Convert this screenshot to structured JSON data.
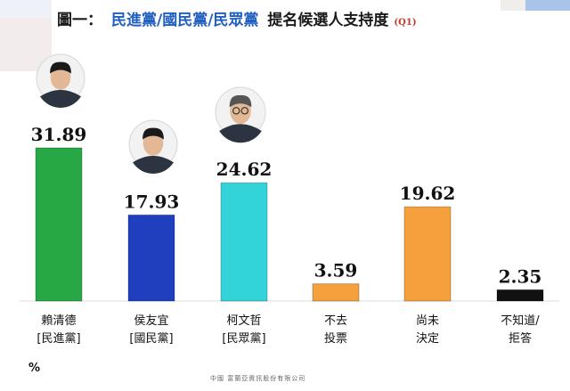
{
  "title": {
    "prefix": "圖一：",
    "parties": "民進黨/國民黨/民眾黨",
    "suffix": "提名候選人支持度",
    "question": "(Q1)"
  },
  "unit": "%",
  "source": "中國 富蘭亞資訊股份有限公司",
  "chart_data": {
    "type": "bar",
    "title": "圖一： 民進黨/國民黨/民眾黨 提名候選人支持度 (Q1)",
    "categories": [
      [
        "賴清德",
        "[民進黨]"
      ],
      [
        "侯友宜",
        "[國民黨]"
      ],
      [
        "柯文哲",
        "[民眾黨]"
      ],
      [
        "不去",
        "投票"
      ],
      [
        "尚未",
        "決定"
      ],
      [
        "不知道/",
        "拒答"
      ]
    ],
    "values": [
      31.89,
      17.93,
      24.62,
      3.59,
      19.62,
      2.35
    ],
    "value_labels": [
      "31.89",
      "17.93",
      "24.62",
      "3.59",
      "19.62",
      "2.35"
    ],
    "colors": [
      "#28a745",
      "#1f3fbf",
      "#33d4d9",
      "#f5a03c",
      "#f5a03c",
      "#111111"
    ],
    "ylabel": "%",
    "ylim": [
      0,
      35
    ],
    "grid": false,
    "portraits": [
      "portrait-lai-icon",
      "portrait-hou-icon",
      "portrait-ko-icon"
    ]
  }
}
